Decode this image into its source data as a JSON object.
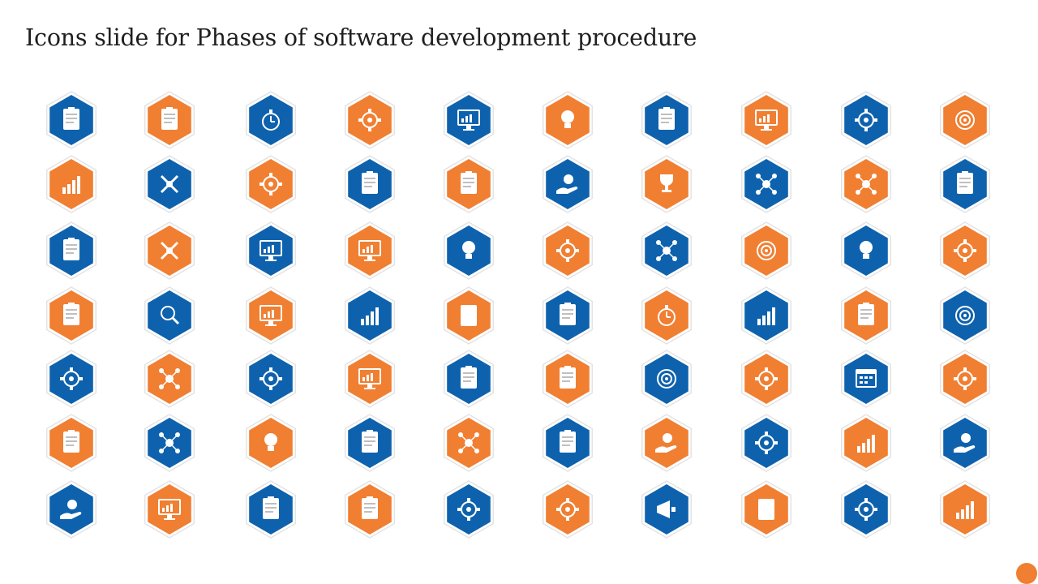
{
  "title": "Icons slide for Phases of software development procedure",
  "colors": {
    "blue": "#0e62ad",
    "orange": "#f07f32",
    "ring": "#e3e3e3",
    "accent_dot": "#f07f32"
  },
  "icon_rows": [
    [
      "clipboard-pyramid-icon",
      "settings-document-icon",
      "stopwatch-icon",
      "gear-user-icon",
      "presentation-analysis-icon",
      "idea-podium-icon",
      "clipboard-flowchart-icon",
      "monitor-globe-icon",
      "gears-cycle-icon",
      "target-cycle-icon"
    ],
    [
      "search-chart-icon",
      "crossed-tools-icon",
      "gear-check-icon",
      "checklist-star-icon",
      "checklist-user-icon",
      "hand-idea-icon",
      "trophy-icon",
      "network-hub-icon",
      "team-network-icon",
      "document-flowchart-icon"
    ],
    [
      "handshake-document-icon",
      "robotic-arm-icon",
      "presentation-search-icon",
      "browser-chart-icon",
      "brain-bulb-icon",
      "gear-network-icon",
      "team-connection-icon",
      "target-arrows-icon",
      "head-bulb-icon",
      "code-gears-icon"
    ],
    [
      "profile-document-icon",
      "search-user-icon",
      "browser-window-icon",
      "bar-growth-icon",
      "calculator-report-icon",
      "checklist-warning-icon",
      "fast-stopwatch-icon",
      "chart-search-icon",
      "document-warning-icon",
      "target-cycle-icon"
    ],
    [
      "conveyor-gear-icon",
      "global-team-icon",
      "hand-money-gear-icon",
      "monitor-chart-icon",
      "clipboard-search-icon",
      "clipboard-pyramid-icon",
      "target-arrows-icon",
      "gear-arrows-icon",
      "calendar-grid-icon",
      "code-gears-icon"
    ],
    [
      "checklist-warning-icon",
      "global-cycle-icon",
      "book-bulb-icon",
      "pyramid-document-icon",
      "network-nodes-icon",
      "checklist-user-icon",
      "hand-user-icon",
      "gear-bulb-icon",
      "search-chart-icon",
      "hand-money-icon"
    ],
    [
      "hands-diamond-icon",
      "monitor-analytics-icon",
      "checklist-pen-icon",
      "document-pen-icon",
      "clipboard-gear-icon",
      "gear-refresh-icon",
      "megaphone-icon",
      "calculator-report-icon",
      "gear-user-icon",
      "flowchart-money-icon"
    ]
  ]
}
